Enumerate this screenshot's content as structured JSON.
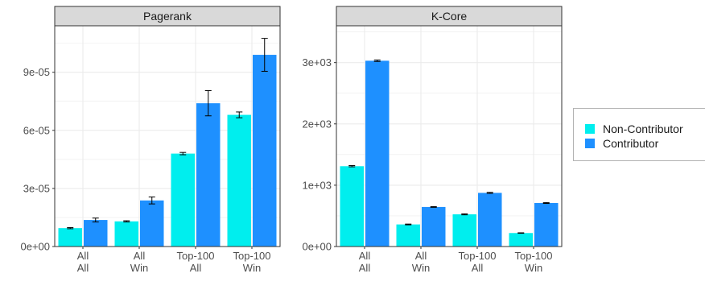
{
  "chart_data": [
    {
      "type": "bar",
      "title": "Pagerank",
      "categories": [
        "All\nAll",
        "All\nWin",
        "Top-100\nAll",
        "Top-100\nWin"
      ],
      "tick_labels": [
        [
          "All",
          "All"
        ],
        [
          "All",
          "Win"
        ],
        [
          "Top-100",
          "All"
        ],
        [
          "Top-100",
          "Win"
        ]
      ],
      "y_ticks": [
        "0e+00",
        "3e-05",
        "6e-05",
        "9e-05"
      ],
      "ylim": [
        0,
        0.000114
      ],
      "series": [
        {
          "name": "Non-Contributor",
          "values": [
            9.5e-06,
            1.3e-05,
            4.8e-05,
            6.8e-05
          ],
          "errors": [
            3e-07,
            3e-07,
            6e-07,
            1.5e-06
          ]
        },
        {
          "name": "Contributor",
          "values": [
            1.37e-05,
            2.38e-05,
            7.4e-05,
            9.9e-05
          ],
          "errors": [
            1e-06,
            1.8e-06,
            6.5e-06,
            8.5e-06
          ]
        }
      ]
    },
    {
      "type": "bar",
      "title": "K-Core",
      "categories": [
        "All\nAll",
        "All\nWin",
        "Top-100\nAll",
        "Top-100\nWin"
      ],
      "tick_labels": [
        [
          "All",
          "All"
        ],
        [
          "All",
          "Win"
        ],
        [
          "Top-100",
          "All"
        ],
        [
          "Top-100",
          "Win"
        ]
      ],
      "y_ticks": [
        "0e+00",
        "1e+03",
        "2e+03",
        "3e+03"
      ],
      "ylim": [
        0,
        3600
      ],
      "series": [
        {
          "name": "Non-Contributor",
          "values": [
            1310,
            360,
            525,
            220
          ],
          "errors": [
            10,
            6,
            8,
            4
          ]
        },
        {
          "name": "Contributor",
          "values": [
            3030,
            645,
            875,
            710
          ],
          "errors": [
            12,
            6,
            8,
            7
          ]
        }
      ]
    }
  ],
  "legend": {
    "placement": "right",
    "items": [
      {
        "label": "Non-Contributor",
        "color": "#00eeee"
      },
      {
        "label": "Contributor",
        "color": "#1e90ff"
      }
    ]
  },
  "style": {
    "strip_fill": "#d9d9d9",
    "grid_color": "#ebebeb",
    "panel_border": "#333333"
  }
}
